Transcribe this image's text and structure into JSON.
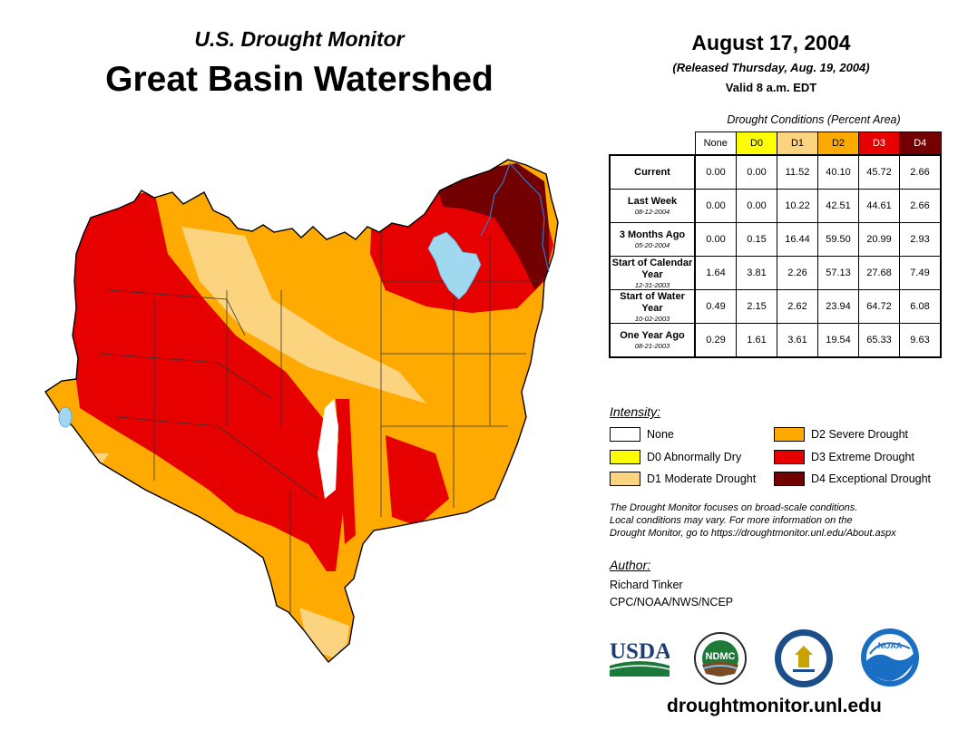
{
  "header": {
    "subtitle": "U.S. Drought Monitor",
    "title": "Great Basin Watershed",
    "date": "August 17, 2004",
    "released": "(Released Thursday, Aug. 19, 2004)",
    "valid": "Valid 8 a.m. EDT"
  },
  "conditions": {
    "title": "Drought Conditions (Percent Area)",
    "columns": [
      "None",
      "D0",
      "D1",
      "D2",
      "D3",
      "D4"
    ],
    "rows": [
      {
        "label": "Current",
        "date": "",
        "values": [
          "0.00",
          "0.00",
          "11.52",
          "40.10",
          "45.72",
          "2.66"
        ]
      },
      {
        "label": "Last Week",
        "date": "08-12-2004",
        "values": [
          "0.00",
          "0.00",
          "10.22",
          "42.51",
          "44.61",
          "2.66"
        ]
      },
      {
        "label": "3 Months Ago",
        "date": "05-20-2004",
        "values": [
          "0.00",
          "0.15",
          "16.44",
          "59.50",
          "20.99",
          "2.93"
        ]
      },
      {
        "label": "Start of Calendar Year",
        "date": "12-31-2003",
        "values": [
          "1.64",
          "3.81",
          "2.26",
          "57.13",
          "27.68",
          "7.49"
        ]
      },
      {
        "label": "Start of Water Year",
        "date": "10-02-2003",
        "values": [
          "0.49",
          "2.15",
          "2.62",
          "23.94",
          "64.72",
          "6.08"
        ]
      },
      {
        "label": "One Year Ago",
        "date": "08-21-2003",
        "values": [
          "0.29",
          "1.61",
          "3.61",
          "19.54",
          "65.33",
          "9.63"
        ]
      }
    ]
  },
  "legend": {
    "title": "Intensity:",
    "items": [
      {
        "label": "None",
        "color": "#ffffff"
      },
      {
        "label": "D0 Abnormally Dry",
        "color": "#ffff00"
      },
      {
        "label": "D1 Moderate Drought",
        "color": "#fcd37f"
      },
      {
        "label": "D2 Severe Drought",
        "color": "#ffaa00"
      },
      {
        "label": "D3 Extreme Drought",
        "color": "#e60000"
      },
      {
        "label": "D4 Exceptional Drought",
        "color": "#730000"
      }
    ]
  },
  "note": {
    "line1": "The Drought Monitor focuses on broad-scale conditions.",
    "line2": "Local conditions may vary. For more information on the",
    "line3": "Drought Monitor, go to https://droughtmonitor.unl.edu/About.aspx"
  },
  "author": {
    "title": "Author:",
    "name": "Richard Tinker",
    "org": "CPC/NOAA/NWS/NCEP"
  },
  "logos": {
    "usda": "USDA",
    "ndmc": "NDMC",
    "noaa": "NOAA"
  },
  "website": "droughtmonitor.unl.edu",
  "colors": {
    "none": "#ffffff",
    "d0": "#ffff00",
    "d1": "#fcd37f",
    "d2": "#ffaa00",
    "d3": "#e60000",
    "d4": "#730000",
    "water": "#a0d8f0"
  }
}
